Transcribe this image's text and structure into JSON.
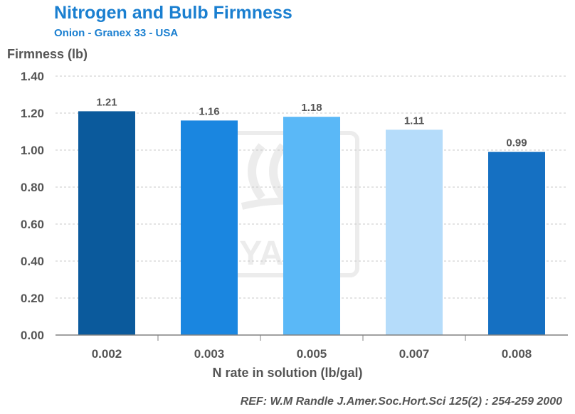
{
  "chart_data": {
    "type": "bar",
    "title": "Nitrogen and Bulb Firmness",
    "subtitle": "Onion - Granex 33 - USA",
    "ylabel": "Firmness (lb)",
    "xlabel": "N rate in solution (lb/gal)",
    "categories": [
      "0.002",
      "0.003",
      "0.005",
      "0.007",
      "0.008"
    ],
    "values": [
      1.21,
      1.16,
      1.18,
      1.11,
      0.99
    ],
    "value_labels": [
      "1.21",
      "1.16",
      "1.18",
      "1.11",
      "0.99"
    ],
    "bar_colors": [
      "#0b5a9c",
      "#1a86e0",
      "#5ab8f7",
      "#b5dcfa",
      "#1570c2"
    ],
    "ylim": [
      0,
      1.4
    ],
    "yticks": [
      0,
      0.2,
      0.4,
      0.6,
      0.8,
      1.0,
      1.2,
      1.4
    ],
    "ytick_labels": [
      "0.00",
      "0.20",
      "0.40",
      "0.60",
      "0.80",
      "1.00",
      "1.20",
      "1.40"
    ],
    "grid": true,
    "reference": "REF: W.M Randle  J.Amer.Soc.Hort.Sci 125(2) : 254-259 2000"
  }
}
